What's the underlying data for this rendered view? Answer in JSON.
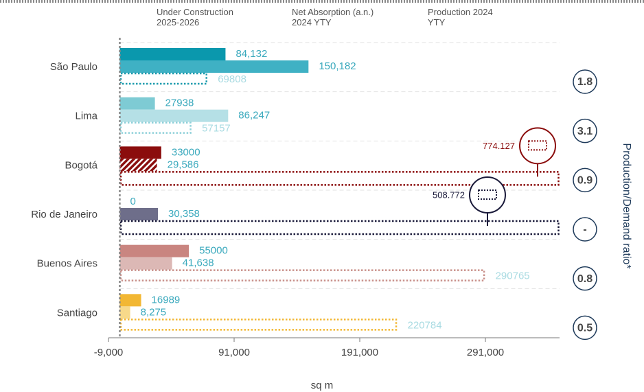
{
  "chart_data": {
    "type": "grouped-hbar",
    "x_label": "sq m",
    "y2_label": "Production/Demand ratio*",
    "categories": [
      "São Paulo",
      "Lima",
      "Bogotá",
      "Rio de Janeiro",
      "Buenos Aires",
      "Santiago"
    ],
    "legend_series": [
      {
        "name": "Under Construction 2025-2026",
        "color": "#8a8a8a",
        "style": "dotted"
      },
      {
        "name": "Net Absorption (a.n.) 2024 YTY",
        "color": "#c8c8c8",
        "style": "solid"
      },
      {
        "name": "Production 2024 YTY",
        "color": "#808080",
        "style": "solid"
      }
    ],
    "series": [
      {
        "style": "solid",
        "label_color": "#3aa9bd",
        "colors": [
          "#0a98ad",
          "#7ecbd4",
          "#8b0d0d",
          "#6e6e8a",
          "#c98580",
          "#f2b733"
        ],
        "values": [
          84132,
          27938,
          33000,
          0,
          55000,
          16989
        ],
        "value_labels": [
          "84,132",
          "27938",
          "33000",
          "0",
          "55000",
          "16989"
        ]
      },
      {
        "style": "solid",
        "label_color": "#3aa9bd",
        "colors": [
          "#3fb1c4",
          "#b5e0e6",
          "#8b0d0d",
          "#6e6e8a",
          "#dcb8b5",
          "#f7d98a"
        ],
        "hatch": [
          false,
          false,
          true,
          false,
          false,
          false
        ],
        "values": [
          150182,
          86247,
          29586,
          30358,
          41638,
          8275
        ],
        "value_labels": [
          "150,182",
          "86,247",
          "29,586",
          "30,358",
          "41,638",
          "8,275"
        ]
      },
      {
        "style": "dotted",
        "label_color": "#a9dbe2",
        "colors": [
          "#1a9aac",
          "#8fd0d9",
          "#8b0d0d",
          "#1a1a3a",
          "#c9908a",
          "#f2b733"
        ],
        "values": [
          69808,
          57157,
          774127,
          508772,
          290765,
          220784
        ],
        "value_labels": [
          "69808",
          "57157",
          "774.127",
          "508.772",
          "290765",
          "220784"
        ]
      }
    ],
    "ratio_labels": [
      "1.8",
      "3.1",
      "0.9",
      "-",
      "0.8",
      "0.5"
    ],
    "xlim": [
      -9000,
      350000
    ],
    "xticks": [
      {
        "value": -9000,
        "label": "-9,000"
      },
      {
        "value": 91000,
        "label": "91,000"
      },
      {
        "value": 191000,
        "label": "191,000"
      },
      {
        "value": 291000,
        "label": "291,000"
      }
    ],
    "grid": true
  }
}
